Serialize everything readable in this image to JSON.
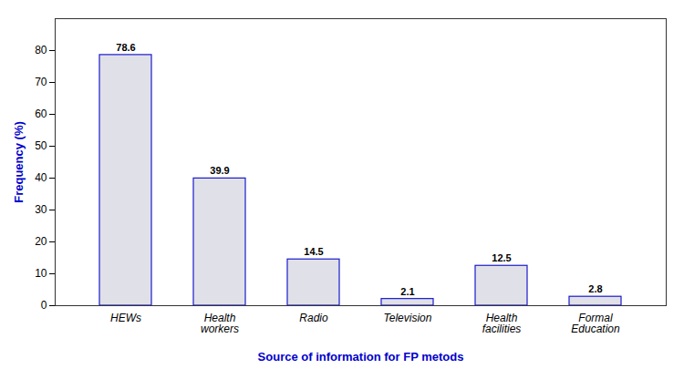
{
  "chart_data": {
    "type": "bar",
    "categories": [
      "HEWs",
      "Health\nworkers",
      "Radio",
      "Television",
      "Health\nfacilities",
      "Formal\nEducation"
    ],
    "values": [
      78.6,
      39.9,
      14.5,
      2.1,
      12.5,
      2.8
    ],
    "color": "#e0e0e8",
    "xlabel": "Source of information for FP metods",
    "ylabel": "Frequency (%)",
    "ylim": [
      0,
      90
    ],
    "yticks": [
      0,
      10,
      20,
      30,
      40,
      50,
      60,
      70,
      80
    ],
    "grid": false,
    "data_labels": true
  }
}
